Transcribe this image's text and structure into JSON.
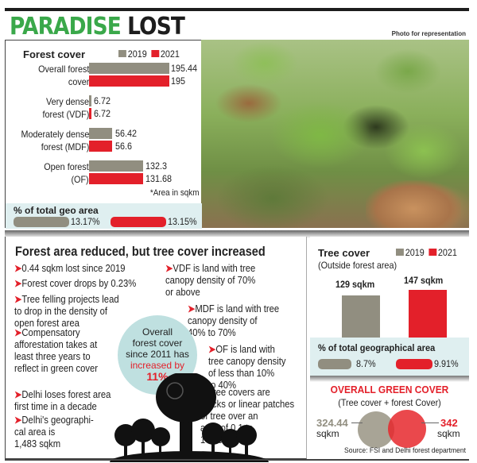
{
  "header": {
    "title_green": "PARADISE",
    "title_black": "LOST",
    "photo_credit": "Photo for representation"
  },
  "colors": {
    "green_title": "#3aa84a",
    "gray_2019": "#918e80",
    "red_2021": "#e3202a",
    "light_blue_box": "#dfeff0",
    "circle_blue": "#bfe0e0"
  },
  "forest_cover": {
    "title": "Forest cover",
    "legend": [
      "2019",
      "2021"
    ],
    "note": "*Area in sqkm",
    "rows": [
      {
        "label1": "Overall forest",
        "label2": "cover",
        "v2019": "195.44",
        "v2021": "195"
      },
      {
        "label1": "Very dense",
        "label2": "forest (VDF)",
        "v2019": "6.72",
        "v2021": "6.72"
      },
      {
        "label1": "Moderately dense",
        "label2": "forest (MDF)",
        "v2019": "56.42",
        "v2021": "56.6"
      },
      {
        "label1": "Open forest",
        "label2": "(OF)",
        "v2019": "132.3",
        "v2021": "131.68"
      }
    ],
    "geo_area": {
      "title": "% of total geo area",
      "v2019": "13.17%",
      "v2021": "13.15%"
    }
  },
  "lower": {
    "title": "Forest area reduced, but tree cover increased",
    "bullets_left": [
      "0.44 sqkm lost since 2019",
      "Forest cover drops by 0.23%",
      "Tree felling projects lead|to drop in the density of|open forest area",
      "Compensatory|afforestation takes at|least three years to|reflect in green cover",
      "Delhi loses forest area|first time in a decade",
      "Delhi's geographi-|cal area is|1,483 sqkm"
    ],
    "bullets_right": [
      "VDF is land with tree|canopy density of 70%|or above",
      "MDF is land with tree|canopy density of|40% to 70%",
      "OF is land with|tree canopy density|of less than 10%|to 40%",
      "Tree covers are|blocks or linear patches|of tree over an|area of 0.1 to|1 hectare"
    ],
    "circle": {
      "line1": "Overall",
      "line2": "forest cover",
      "line3": "since 2011 has",
      "line4": "increased by",
      "line5": "11%"
    }
  },
  "tree_cover": {
    "title": "Tree cover",
    "subtitle": "(Outside forest area)",
    "legend": [
      "2019",
      "2021"
    ],
    "v2019": "129 sqkm",
    "v2021": "147 sqkm",
    "geo_title": "% of total geographical area",
    "geo_2019": "8.7%",
    "geo_2021": "9.91%"
  },
  "green_cover": {
    "title": "OVERALL GREEN COVER",
    "subtitle": "(Tree cover + forest Cover)",
    "v2019_num": "324.44",
    "v2021_num": "342",
    "unit": "sqkm",
    "source": "Source: FSI and Delhi forest department"
  },
  "chart_data": [
    {
      "type": "bar",
      "title": "Forest cover",
      "orientation": "horizontal",
      "categories": [
        "Overall forest cover",
        "Very dense forest (VDF)",
        "Moderately dense forest (MDF)",
        "Open forest (OF)"
      ],
      "series": [
        {
          "name": "2019",
          "values": [
            195.44,
            6.72,
            56.42,
            132.3
          ]
        },
        {
          "name": "2021",
          "values": [
            195,
            6.72,
            56.6,
            131.68
          ]
        }
      ],
      "unit": "sqkm",
      "annotations": [
        "*Area in sqkm"
      ]
    },
    {
      "type": "bar",
      "title": "% of total geo area",
      "categories": [
        "2019",
        "2021"
      ],
      "values": [
        13.17,
        13.15
      ],
      "unit": "%"
    },
    {
      "type": "bar",
      "title": "Tree cover (Outside forest area)",
      "categories": [
        "2019",
        "2021"
      ],
      "values": [
        129,
        147
      ],
      "unit": "sqkm"
    },
    {
      "type": "bar",
      "title": "% of total geographical area (tree cover)",
      "categories": [
        "2019",
        "2021"
      ],
      "values": [
        8.7,
        9.91
      ],
      "unit": "%"
    },
    {
      "type": "scatter",
      "title": "Overall green cover (Tree cover + forest Cover)",
      "categories": [
        "2019",
        "2021"
      ],
      "values": [
        324.44,
        342
      ],
      "unit": "sqkm"
    }
  ]
}
